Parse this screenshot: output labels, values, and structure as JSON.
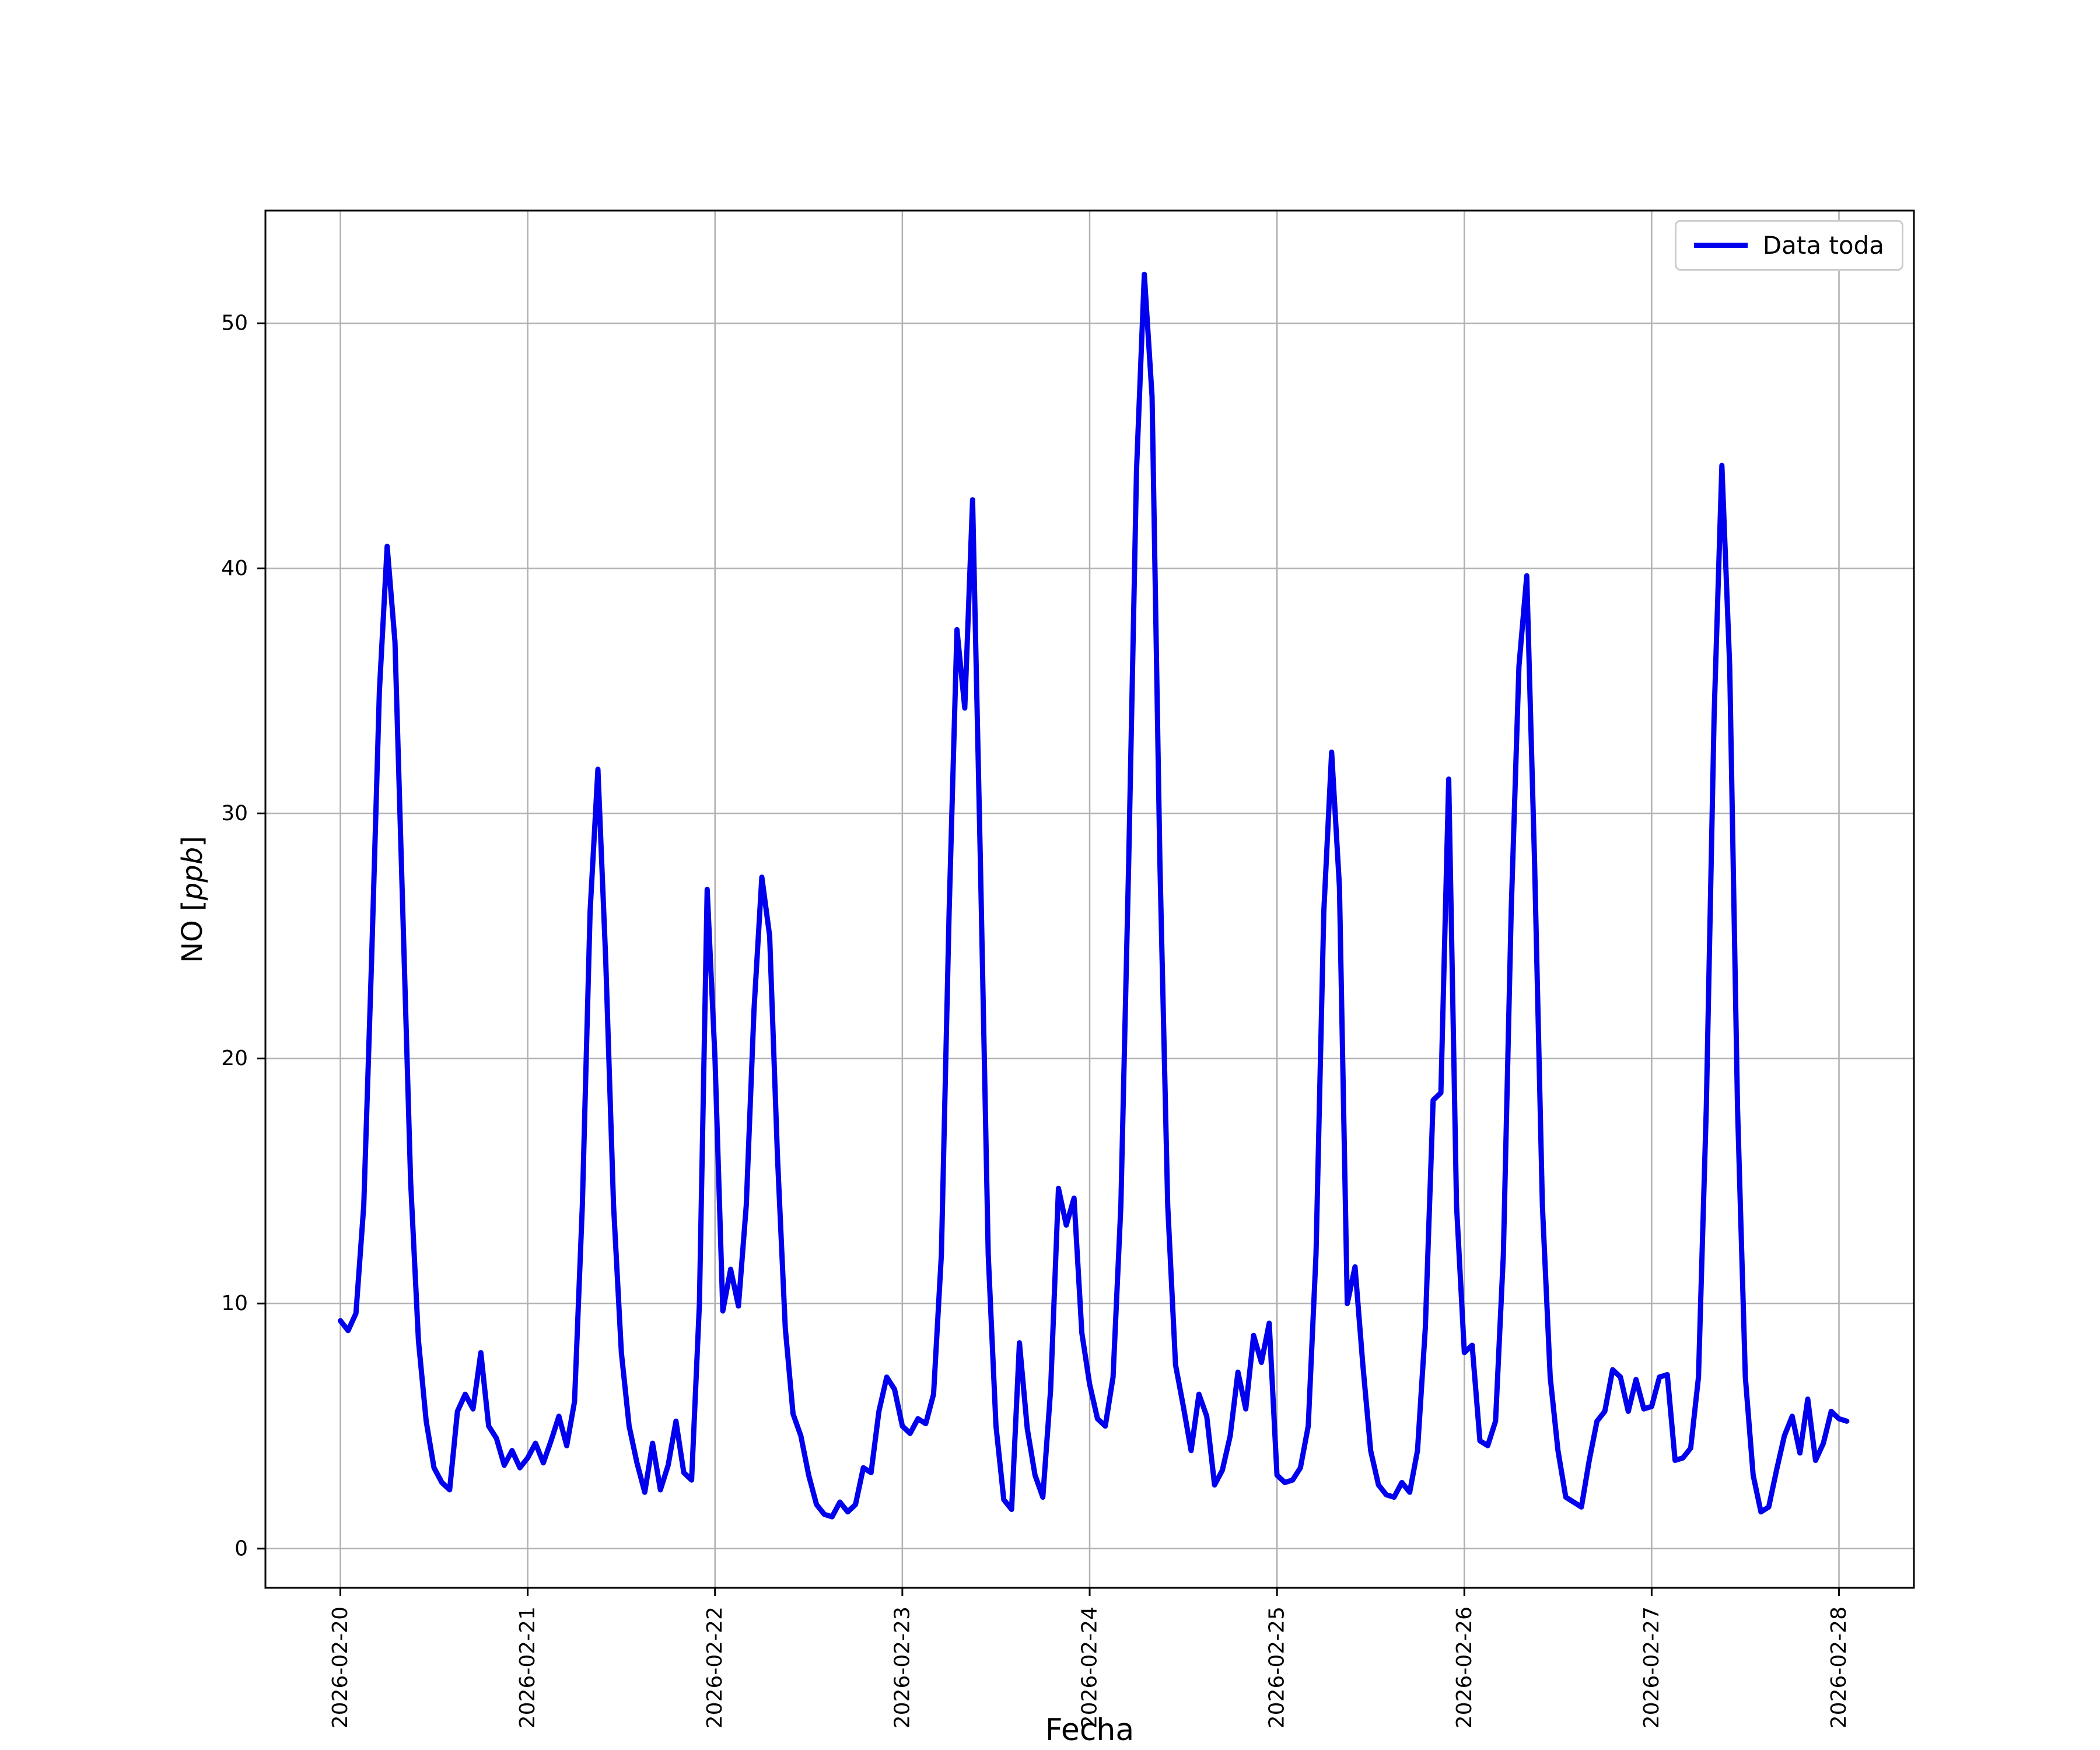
{
  "chart_data": {
    "type": "line",
    "title": "",
    "xlabel": "Fecha",
    "ylabel": "NO [ppb]",
    "ylabel_parts": {
      "prefix": "NO [",
      "italic": "ppb",
      "suffix": "]"
    },
    "legend": [
      "Data toda"
    ],
    "legend_position": "upper right",
    "line_color": "#0000ee",
    "grid": true,
    "grid_color": "#b0b0b0",
    "x_tick_labels": [
      "2026-02-20",
      "2026-02-21",
      "2026-02-22",
      "2026-02-23",
      "2026-02-24",
      "2026-02-25",
      "2026-02-26",
      "2026-02-27",
      "2026-02-28"
    ],
    "x_tick_rotation_deg": 90,
    "y_ticks": [
      0,
      10,
      20,
      30,
      40,
      50
    ],
    "xlim_days": [
      -0.4,
      8.4
    ],
    "ylim": [
      -1.6,
      54.6
    ],
    "x_sampling": "hourly; point i is i hours after 2026-02-20 00:00",
    "series": [
      {
        "name": "Data toda",
        "y_values": [
          9.3,
          8.9,
          9.6,
          14.0,
          24.0,
          35.0,
          40.9,
          37.0,
          26.0,
          15.0,
          8.5,
          5.2,
          3.3,
          2.7,
          2.4,
          5.6,
          6.3,
          5.7,
          8.0,
          5.0,
          4.5,
          3.4,
          4.0,
          3.3,
          3.7,
          4.3,
          3.5,
          4.4,
          5.4,
          4.2,
          6.0,
          14.0,
          26.0,
          31.8,
          24.0,
          14.0,
          8.0,
          5.0,
          3.5,
          2.3,
          4.3,
          2.4,
          3.4,
          5.2,
          3.1,
          2.8,
          10.0,
          26.9,
          20.0,
          9.7,
          11.4,
          9.9,
          14.0,
          22.0,
          27.4,
          25.0,
          16.0,
          9.0,
          5.5,
          4.6,
          3.0,
          1.8,
          1.4,
          1.3,
          1.9,
          1.5,
          1.8,
          3.3,
          3.1,
          5.6,
          7.0,
          6.5,
          5.0,
          4.7,
          5.3,
          5.1,
          6.3,
          12.0,
          26.0,
          37.5,
          34.3,
          42.8,
          28.0,
          12.0,
          5.0,
          2.0,
          1.6,
          8.4,
          4.9,
          3.0,
          2.1,
          6.5,
          14.7,
          13.2,
          14.3,
          8.8,
          6.7,
          5.3,
          5.0,
          7.0,
          14.0,
          28.0,
          44.0,
          52.0,
          47.0,
          28.0,
          14.0,
          7.5,
          5.8,
          4.0,
          6.3,
          5.4,
          2.6,
          3.2,
          4.6,
          7.2,
          5.7,
          8.7,
          7.6,
          9.2,
          3.0,
          2.7,
          2.8,
          3.3,
          5.0,
          12.0,
          26.0,
          32.5,
          27.0,
          10.0,
          11.5,
          7.5,
          4.0,
          2.6,
          2.2,
          2.1,
          2.7,
          2.3,
          4.0,
          9.0,
          18.3,
          18.6,
          31.4,
          14.0,
          8.0,
          8.3,
          4.4,
          4.2,
          5.2,
          12.0,
          26.0,
          36.0,
          39.7,
          28.0,
          14.0,
          7.0,
          4.0,
          2.1,
          1.9,
          1.7,
          3.6,
          5.2,
          5.6,
          7.3,
          7.0,
          5.6,
          6.9,
          5.7,
          5.8,
          7.0,
          7.1,
          3.6,
          3.7,
          4.1,
          7.0,
          18.0,
          34.0,
          44.2,
          36.0,
          18.0,
          7.0,
          3.0,
          1.5,
          1.7,
          3.2,
          4.6,
          5.4,
          3.9,
          6.1,
          3.6,
          4.3,
          5.6,
          5.3,
          5.2
        ]
      }
    ]
  }
}
